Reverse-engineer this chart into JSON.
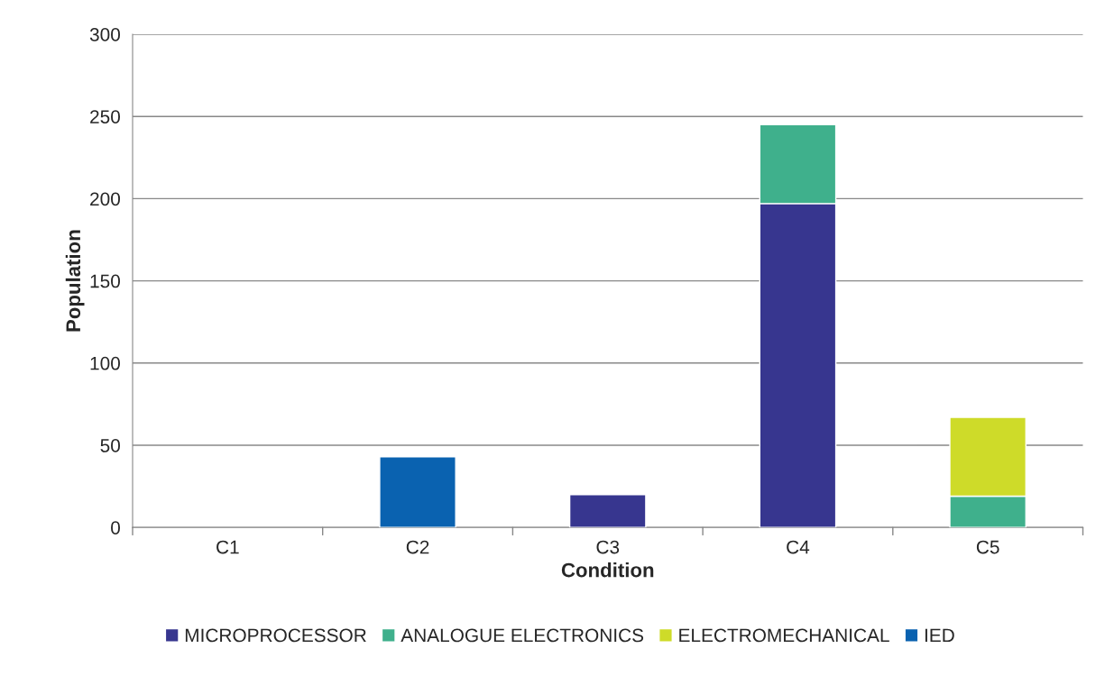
{
  "chart_data": {
    "type": "bar",
    "stacked": true,
    "xlabel": "Condition",
    "ylabel": "Population",
    "categories": [
      "C1",
      "C2",
      "C3",
      "C4",
      "C5"
    ],
    "series": [
      {
        "name": "MICROPROCESSOR",
        "color": "#37368f",
        "values": [
          null,
          null,
          20,
          197,
          null
        ]
      },
      {
        "name": "ANALOGUE ELECTRONICS",
        "color": "#3fb08c",
        "values": [
          null,
          null,
          null,
          48,
          19
        ]
      },
      {
        "name": "ELECTROMECHANICAL",
        "color": "#cedb29",
        "values": [
          null,
          null,
          null,
          null,
          48
        ]
      },
      {
        "name": "IED",
        "color": "#0a62b0",
        "values": [
          null,
          43,
          null,
          null,
          null
        ]
      }
    ],
    "ylim": [
      0,
      300
    ],
    "yticks": [
      0,
      50,
      100,
      150,
      200,
      250,
      300
    ],
    "grid": "y",
    "legend": "bottom"
  }
}
